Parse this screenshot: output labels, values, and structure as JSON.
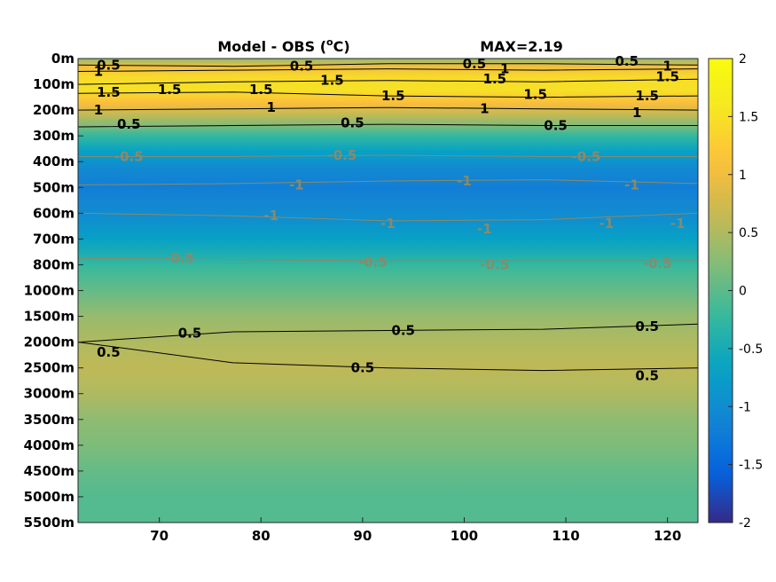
{
  "chart_data": {
    "type": "heatmap",
    "title_left": "Model - OBS (",
    "title_unit_sup": "o",
    "title_unit_end": "C)",
    "title_right": "MAX=2.19",
    "xlim": [
      62,
      123
    ],
    "x_ticks": [
      70,
      80,
      90,
      100,
      110,
      120
    ],
    "x_tick_labels": [
      "70",
      "80",
      "90",
      "100",
      "110",
      "120"
    ],
    "y_tick_labels": [
      "0m",
      "100m",
      "200m",
      "300m",
      "400m",
      "500m",
      "600m",
      "700m",
      "800m",
      "1000m",
      "1500m",
      "2000m",
      "2500m",
      "3000m",
      "3500m",
      "4000m",
      "4500m",
      "5000m",
      "5500m"
    ],
    "colorbar": {
      "range": [
        -2,
        2
      ],
      "ticks": [
        2,
        1.5,
        1,
        0.5,
        0,
        -0.5,
        -1,
        -1.5,
        -2
      ],
      "tick_labels": [
        "2",
        "1.5",
        "1",
        "0.5",
        "0",
        "-0.5",
        "-1",
        "-1.5",
        "-2"
      ],
      "colormap": "parula"
    },
    "depth_profile": [
      {
        "level": 0,
        "value": 0.3
      },
      {
        "level": 0.3,
        "value": 1.0
      },
      {
        "level": 0.7,
        "value": 1.4
      },
      {
        "level": 1.2,
        "value": 1.5
      },
      {
        "level": 1.7,
        "value": 1.1
      },
      {
        "level": 2.2,
        "value": 0.6
      },
      {
        "level": 2.6,
        "value": 0.2
      },
      {
        "level": 3.0,
        "value": -0.25
      },
      {
        "level": 3.6,
        "value": -0.7
      },
      {
        "level": 4.3,
        "value": -1.05
      },
      {
        "level": 5.0,
        "value": -1.2
      },
      {
        "level": 5.6,
        "value": -1.1
      },
      {
        "level": 6.3,
        "value": -0.95
      },
      {
        "level": 7.0,
        "value": -0.7
      },
      {
        "level": 7.6,
        "value": -0.45
      },
      {
        "level": 8.1,
        "value": -0.2
      },
      {
        "level": 9.0,
        "value": 0.05
      },
      {
        "level": 10.0,
        "value": 0.35
      },
      {
        "level": 11.0,
        "value": 0.5
      },
      {
        "level": 12.0,
        "value": 0.6
      },
      {
        "level": 13.0,
        "value": 0.5
      },
      {
        "level": 14.0,
        "value": 0.3
      },
      {
        "level": 15.0,
        "value": 0.2
      },
      {
        "level": 16.0,
        "value": 0.05
      },
      {
        "level": 17.0,
        "value": -0.05
      },
      {
        "level": 18.0,
        "value": -0.05
      }
    ],
    "contours": [
      {
        "level": "0.5",
        "color": "#000000",
        "y": [
          0.25,
          0.3,
          0.2,
          0.2,
          0.25
        ]
      },
      {
        "level": "1",
        "color": "#000000",
        "y": [
          0.5,
          0.45,
          0.4,
          0.45,
          0.4
        ]
      },
      {
        "level": "1.5",
        "color": "#000000",
        "y": [
          1.0,
          0.9,
          0.85,
          0.9,
          0.8
        ]
      },
      {
        "level": "1.5",
        "color": "#000000",
        "y": [
          1.35,
          1.3,
          1.45,
          1.5,
          1.45
        ]
      },
      {
        "level": "1",
        "color": "#000000",
        "y": [
          2.0,
          1.95,
          1.9,
          1.95,
          2.0
        ]
      },
      {
        "level": "0.5",
        "color": "#000000",
        "y": [
          2.65,
          2.6,
          2.55,
          2.6,
          2.6
        ]
      },
      {
        "level": "-0.5",
        "color": "#8a8a6a",
        "y": [
          3.8,
          3.8,
          3.75,
          3.8,
          3.8
        ]
      },
      {
        "level": "-1",
        "color": "#8a8a6a",
        "y": [
          4.9,
          4.85,
          4.75,
          4.7,
          4.85
        ]
      },
      {
        "level": "-1",
        "color": "#8a8a6a",
        "y": [
          6.0,
          6.1,
          6.3,
          6.25,
          6.0
        ]
      },
      {
        "level": "-0.5",
        "color": "#8a8a6a",
        "y": [
          7.75,
          7.8,
          7.85,
          7.85,
          7.85
        ]
      },
      {
        "level": "0.5",
        "color": "#000000",
        "y": [
          11.0,
          10.6,
          10.55,
          10.5,
          10.3
        ]
      },
      {
        "level": "0.5",
        "color": "#000000",
        "y": [
          11.0,
          11.8,
          12.0,
          12.1,
          12.0
        ]
      }
    ],
    "contour_labels": [
      {
        "text": "0.5",
        "x": 65,
        "y": 0.25,
        "color": "#000000"
      },
      {
        "text": "1",
        "x": 64,
        "y": 0.5,
        "color": "#000000"
      },
      {
        "text": "1.5",
        "x": 65,
        "y": 1.3,
        "color": "#000000"
      },
      {
        "text": "1.5",
        "x": 71,
        "y": 1.2,
        "color": "#000000"
      },
      {
        "text": "1.5",
        "x": 80,
        "y": 1.2,
        "color": "#000000"
      },
      {
        "text": "1",
        "x": 64,
        "y": 2.0,
        "color": "#000000"
      },
      {
        "text": "0.5",
        "x": 67,
        "y": 2.55,
        "color": "#000000"
      },
      {
        "text": "1",
        "x": 81,
        "y": 1.9,
        "color": "#000000"
      },
      {
        "text": "0.5",
        "x": 84,
        "y": 0.3,
        "color": "#000000"
      },
      {
        "text": "1.5",
        "x": 87,
        "y": 0.85,
        "color": "#000000"
      },
      {
        "text": "1.5",
        "x": 93,
        "y": 1.45,
        "color": "#000000"
      },
      {
        "text": "0.5",
        "x": 89,
        "y": 2.5,
        "color": "#000000"
      },
      {
        "text": "1",
        "x": 102,
        "y": 1.95,
        "color": "#000000"
      },
      {
        "text": "0.5",
        "x": 101,
        "y": 0.2,
        "color": "#000000"
      },
      {
        "text": "1",
        "x": 104,
        "y": 0.4,
        "color": "#000000"
      },
      {
        "text": "1.5",
        "x": 103,
        "y": 0.8,
        "color": "#000000"
      },
      {
        "text": "1.5",
        "x": 107,
        "y": 1.4,
        "color": "#000000"
      },
      {
        "text": "0.5",
        "x": 109,
        "y": 2.6,
        "color": "#000000"
      },
      {
        "text": "0.5",
        "x": 116,
        "y": 0.1,
        "color": "#000000"
      },
      {
        "text": "1",
        "x": 120,
        "y": 0.3,
        "color": "#000000"
      },
      {
        "text": "1.5",
        "x": 120,
        "y": 0.7,
        "color": "#000000"
      },
      {
        "text": "1.5",
        "x": 118,
        "y": 1.45,
        "color": "#000000"
      },
      {
        "text": "1",
        "x": 117,
        "y": 2.1,
        "color": "#000000"
      },
      {
        "text": "-0.5",
        "x": 67,
        "y": 3.8,
        "color": "#8a8a6a"
      },
      {
        "text": "-0.5",
        "x": 88,
        "y": 3.75,
        "color": "#8a8a6a"
      },
      {
        "text": "-0.5",
        "x": 112,
        "y": 3.8,
        "color": "#8a8a6a"
      },
      {
        "text": "-1",
        "x": 83.5,
        "y": 4.9,
        "color": "#8a8a6a"
      },
      {
        "text": "-1",
        "x": 100,
        "y": 4.75,
        "color": "#8a8a6a"
      },
      {
        "text": "-1",
        "x": 116.5,
        "y": 4.9,
        "color": "#8a8a6a"
      },
      {
        "text": "-1",
        "x": 81,
        "y": 6.1,
        "color": "#8a8a6a"
      },
      {
        "text": "-1",
        "x": 92.5,
        "y": 6.4,
        "color": "#8a8a6a"
      },
      {
        "text": "-1",
        "x": 102,
        "y": 6.6,
        "color": "#8a8a6a"
      },
      {
        "text": "-1",
        "x": 114,
        "y": 6.4,
        "color": "#8a8a6a"
      },
      {
        "text": "-1",
        "x": 121,
        "y": 6.4,
        "color": "#8a8a6a"
      },
      {
        "text": "-0.5",
        "x": 72,
        "y": 7.75,
        "color": "#8a8a6a"
      },
      {
        "text": "-0.5",
        "x": 91,
        "y": 7.9,
        "color": "#8a8a6a"
      },
      {
        "text": "-0.5",
        "x": 103,
        "y": 8.0,
        "color": "#8a8a6a"
      },
      {
        "text": "-0.5",
        "x": 119,
        "y": 7.95,
        "color": "#8a8a6a"
      },
      {
        "text": "0.5",
        "x": 73,
        "y": 10.65,
        "color": "#000000"
      },
      {
        "text": "0.5",
        "x": 94,
        "y": 10.55,
        "color": "#000000"
      },
      {
        "text": "0.5",
        "x": 118,
        "y": 10.4,
        "color": "#000000"
      },
      {
        "text": "0.5",
        "x": 65,
        "y": 11.4,
        "color": "#000000"
      },
      {
        "text": "0.5",
        "x": 90,
        "y": 12.0,
        "color": "#000000"
      },
      {
        "text": "0.5",
        "x": 118,
        "y": 12.3,
        "color": "#000000"
      }
    ]
  }
}
